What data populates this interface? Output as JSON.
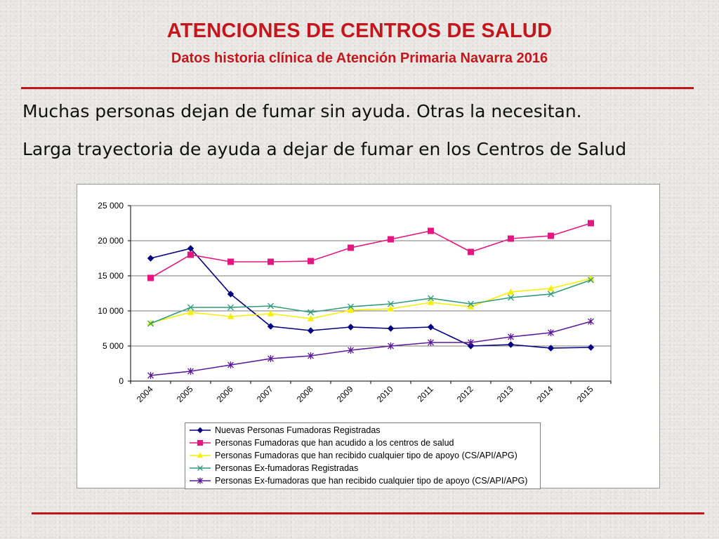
{
  "slide": {
    "title": "ATENCIONES DE CENTROS DE SALUD",
    "subtitle": "Datos historia clínica de Atención Primaria Navarra 2016",
    "lines": [
      "Muchas personas dejan de fumar sin ayuda. Otras la necesitan.",
      "Larga trayectoria de ayuda a dejar de fumar en los Centros de Salud"
    ]
  },
  "colors": {
    "title": "#c4161c",
    "rule": "#c0171d"
  },
  "chart_data": {
    "type": "line",
    "x": [
      "2004",
      "2005",
      "2006",
      "2007",
      "2008",
      "2009",
      "2010",
      "2011",
      "2012",
      "2013",
      "2014",
      "2015"
    ],
    "ylim": [
      0,
      25000
    ],
    "yticks": [
      0,
      5000,
      10000,
      15000,
      20000,
      25000
    ],
    "ytick_labels": [
      "0",
      "5 000",
      "10 000",
      "15 000",
      "20 000",
      "25 000"
    ],
    "grid": true,
    "legend_position": "bottom",
    "series": [
      {
        "name": "Nuevas Personas Fumadoras Registradas",
        "color": "#000080",
        "marker": "diamond",
        "values": [
          17500,
          18900,
          12400,
          7800,
          7200,
          7700,
          7500,
          7700,
          5000,
          5200,
          4700,
          4800
        ]
      },
      {
        "name": "Personas Fumadoras que han acudido a los centros de salud",
        "color": "#e6157f",
        "marker": "square",
        "values": [
          14700,
          18000,
          17000,
          17000,
          17100,
          19000,
          20200,
          21400,
          18400,
          20300,
          20700,
          22500
        ]
      },
      {
        "name": "Personas Fumadoras que han recibido cualquier tipo de apoyo (CS/API/APG)",
        "color": "#f5f000",
        "marker": "triangle",
        "values": [
          8300,
          9800,
          9200,
          9600,
          8900,
          10100,
          10300,
          11200,
          10600,
          12700,
          13200,
          14600
        ]
      },
      {
        "name": "Personas Ex-fumadoras Registradas",
        "color": "#2f9a7a",
        "marker": "x",
        "values": [
          8200,
          10500,
          10500,
          10700,
          9800,
          10600,
          11000,
          11800,
          11000,
          11900,
          12400,
          14400
        ]
      },
      {
        "name": "Personas Ex-fumadoras que han recibido cualquier tipo de apoyo (CS/API/APG)",
        "color": "#5a1a9a",
        "marker": "star",
        "values": [
          800,
          1400,
          2300,
          3200,
          3600,
          4400,
          5000,
          5500,
          5500,
          6300,
          6900,
          8500
        ]
      }
    ]
  }
}
